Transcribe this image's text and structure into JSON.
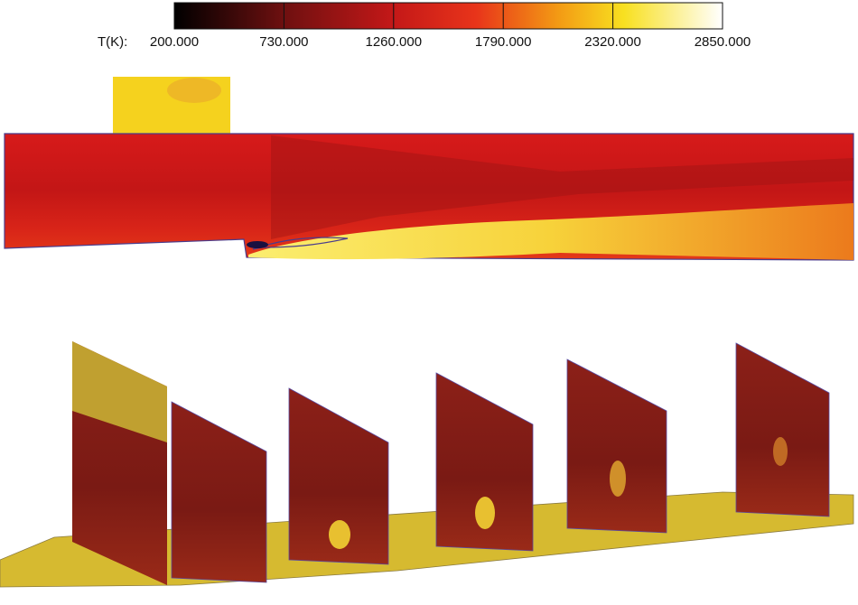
{
  "colorbar": {
    "label": "T(K):",
    "range": [
      200,
      2850
    ],
    "ticks": [
      {
        "value": 200,
        "label": "200.000"
      },
      {
        "value": 730,
        "label": "730.000"
      },
      {
        "value": 1260,
        "label": "1260.000"
      },
      {
        "value": 1790,
        "label": "1790.000"
      },
      {
        "value": 2320,
        "label": "2320.000"
      },
      {
        "value": 2850,
        "label": "2850.000"
      }
    ]
  }
}
